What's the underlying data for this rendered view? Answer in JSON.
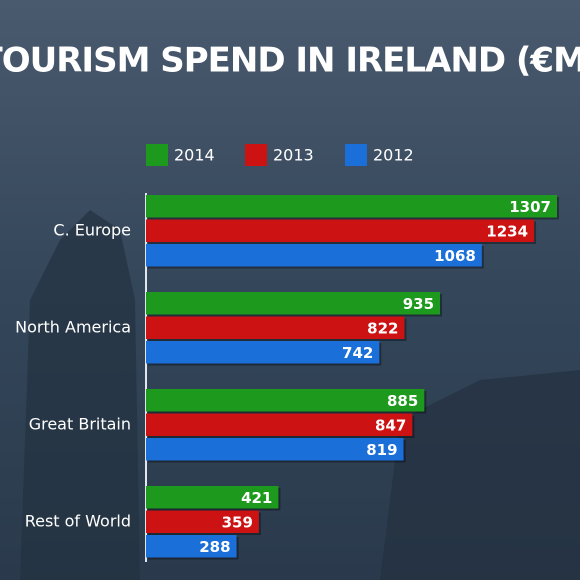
{
  "chart_data": {
    "type": "bar",
    "orientation": "horizontal",
    "title": "TOURISM SPEND IN IRELAND (€M)",
    "categories": [
      "C. Europe",
      "North America",
      "Great Britain",
      "Rest of World"
    ],
    "series": [
      {
        "name": "2014",
        "color": "#1d9a1d",
        "values": [
          1307,
          935,
          885,
          421
        ]
      },
      {
        "name": "2013",
        "color": "#cc1212",
        "values": [
          1234,
          822,
          847,
          359
        ]
      },
      {
        "name": "2012",
        "color": "#1b6fd8",
        "values": [
          1068,
          742,
          819,
          288
        ]
      }
    ]
  }
}
